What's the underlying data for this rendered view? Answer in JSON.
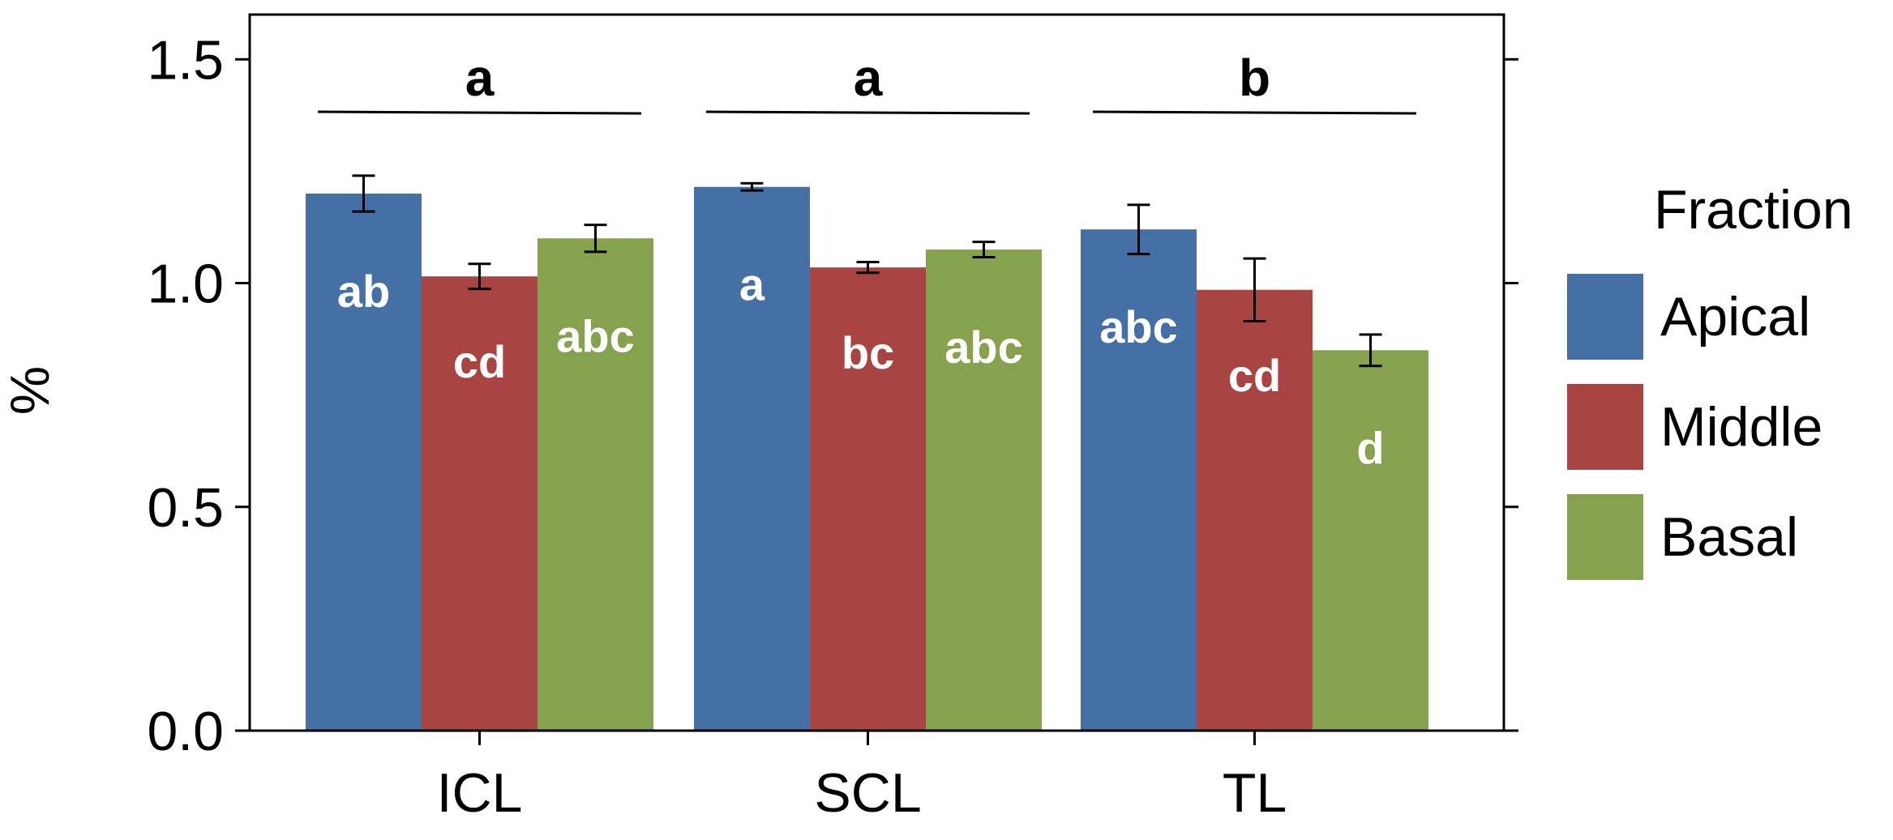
{
  "chart_data": {
    "type": "bar",
    "ylabel": "%",
    "xlabel": "",
    "ylim": [
      0,
      1.6
    ],
    "yticks": [
      "0.0",
      "0.5",
      "1.0",
      "1.5"
    ],
    "categories": [
      "ICL",
      "SCL",
      "TL"
    ],
    "legend": {
      "title": "Fraction",
      "placement": "right"
    },
    "series": [
      {
        "name": "Apical",
        "color": "#4470a6",
        "values": [
          1.2,
          1.215,
          1.12
        ],
        "errors": [
          0.04,
          0.008,
          0.055
        ],
        "labels": [
          "ab",
          "a",
          "abc"
        ]
      },
      {
        "name": "Middle",
        "color": "#a84442",
        "values": [
          1.015,
          1.035,
          0.985
        ],
        "errors": [
          0.028,
          0.012,
          0.07
        ],
        "labels": [
          "cd",
          "bc",
          "cd"
        ]
      },
      {
        "name": "Basal",
        "color": "#86a24e",
        "values": [
          1.1,
          1.075,
          0.85
        ],
        "errors": [
          0.03,
          0.017,
          0.035
        ],
        "labels": [
          "abc",
          "abc",
          "d"
        ]
      }
    ],
    "group_significance": [
      "a",
      "a",
      "b"
    ]
  }
}
